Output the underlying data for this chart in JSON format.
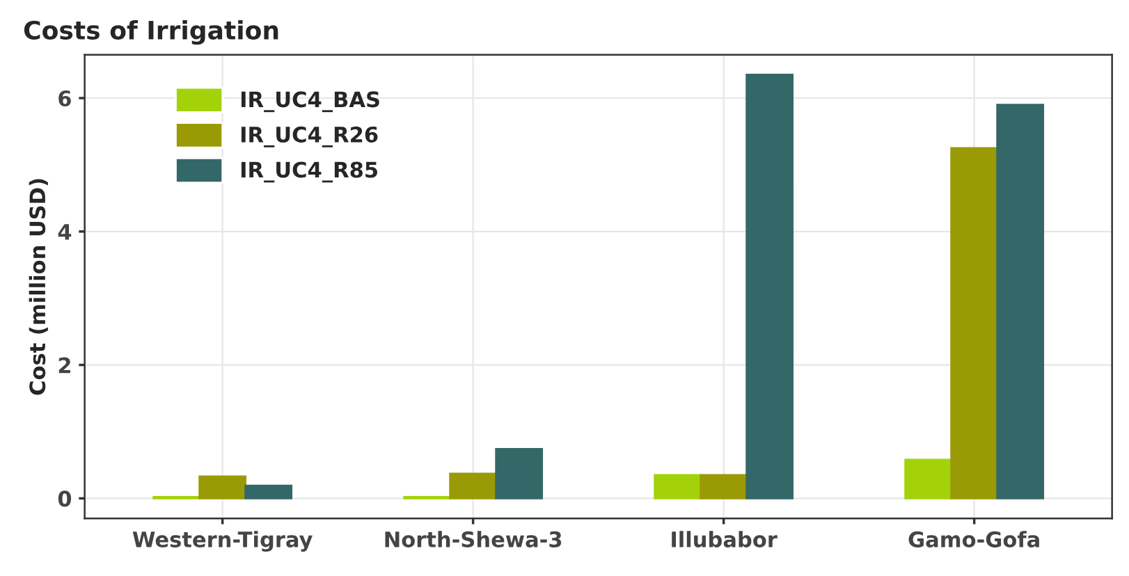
{
  "chart_data": {
    "type": "bar",
    "title": "Costs of Irrigation",
    "ylabel": "Cost (million USD)",
    "categories": [
      "Western-Tigray",
      "North-Shewa-3",
      "Illubabor",
      "Gamo-Gofa"
    ],
    "series": [
      {
        "name": "IR_UC4_BAS",
        "color": "#a3d20a",
        "values": [
          0.02,
          0.02,
          0.35,
          0.58
        ]
      },
      {
        "name": "IR_UC4_R26",
        "color": "#9a9a06",
        "values": [
          0.33,
          0.37,
          0.35,
          5.25
        ]
      },
      {
        "name": "IR_UC4_R85",
        "color": "#346868",
        "values": [
          0.19,
          0.74,
          6.35,
          5.9
        ]
      }
    ],
    "ylim": [
      -0.3,
      6.65
    ],
    "yticks": [
      0,
      2,
      4,
      6
    ],
    "grid": true,
    "legend": "top left"
  }
}
